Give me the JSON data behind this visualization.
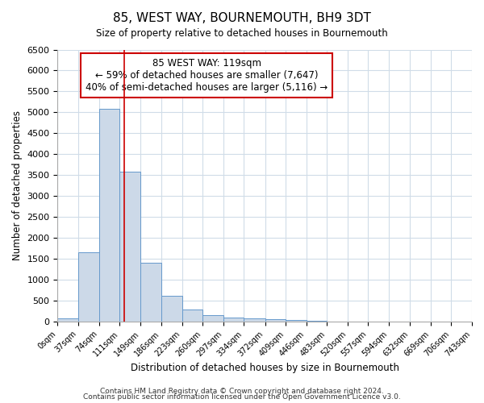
{
  "title": "85, WEST WAY, BOURNEMOUTH, BH9 3DT",
  "subtitle": "Size of property relative to detached houses in Bournemouth",
  "xlabel": "Distribution of detached houses by size in Bournemouth",
  "ylabel": "Number of detached properties",
  "bin_edges": [
    0,
    37,
    74,
    111,
    149,
    186,
    223,
    260,
    297,
    334,
    372,
    409,
    446,
    483,
    520,
    557,
    594,
    632,
    669,
    706,
    743
  ],
  "bar_heights": [
    75,
    1650,
    5080,
    3580,
    1400,
    615,
    295,
    150,
    110,
    75,
    55,
    40,
    30,
    0,
    0,
    0,
    0,
    0,
    0,
    0
  ],
  "bar_color": "#ccd9e8",
  "bar_edgecolor": "#6699cc",
  "property_size": 119,
  "vline_color": "#cc0000",
  "annotation_line1": "85 WEST WAY: 119sqm",
  "annotation_line2": "← 59% of detached houses are smaller (7,647)",
  "annotation_line3": "40% of semi-detached houses are larger (5,116) →",
  "annotation_box_color": "#ffffff",
  "annotation_box_edgecolor": "#cc0000",
  "ylim": [
    0,
    6500
  ],
  "yticks": [
    0,
    500,
    1000,
    1500,
    2000,
    2500,
    3000,
    3500,
    4000,
    4500,
    5000,
    5500,
    6000,
    6500
  ],
  "grid_color": "#d0dce8",
  "footer1": "Contains HM Land Registry data © Crown copyright and database right 2024.",
  "footer2": "Contains public sector information licensed under the Open Government Licence v3.0.",
  "background_color": "#ffffff",
  "plot_background": "#ffffff"
}
